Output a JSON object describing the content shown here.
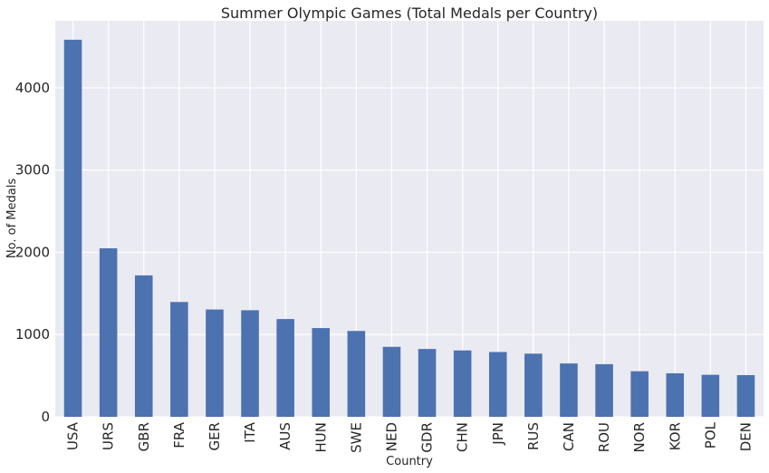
{
  "chart_data": {
    "type": "bar",
    "title": "Summer Olympic Games (Total Medals per Country)",
    "xlabel": "Country",
    "ylabel": "No. of Medals",
    "categories": [
      "USA",
      "URS",
      "GBR",
      "FRA",
      "GER",
      "ITA",
      "AUS",
      "HUN",
      "SWE",
      "NED",
      "GDR",
      "CHN",
      "JPN",
      "RUS",
      "CAN",
      "ROU",
      "NOR",
      "KOR",
      "POL",
      "DEN"
    ],
    "values": [
      4585,
      2049,
      1720,
      1396,
      1305,
      1296,
      1189,
      1079,
      1044,
      851,
      825,
      807,
      788,
      768,
      649,
      640,
      554,
      529,
      511,
      507
    ],
    "yticks": [
      "0",
      "1000",
      "2000",
      "3000",
      "4000"
    ],
    "ylim": [
      0,
      4815
    ],
    "grid": true,
    "legend": "none",
    "colors": {
      "bar": "#4c72b0",
      "plot_background": "#eaeaf2",
      "grid": "#ffffff"
    }
  }
}
